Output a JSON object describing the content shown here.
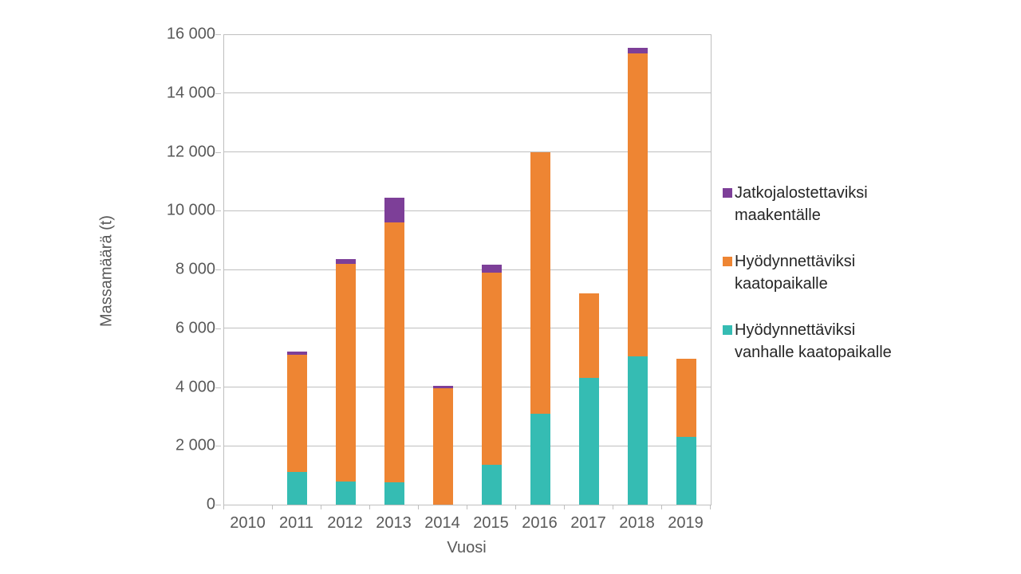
{
  "chart_data": {
    "type": "bar",
    "stacked": true,
    "title": "",
    "xlabel": "Vuosi",
    "ylabel": "Massamäärä (t)",
    "ylim": [
      0,
      16000
    ],
    "ytick_step": 2000,
    "yticks": [
      {
        "value": 0,
        "label": "0"
      },
      {
        "value": 2000,
        "label": "2 000"
      },
      {
        "value": 4000,
        "label": "4 000"
      },
      {
        "value": 6000,
        "label": "6 000"
      },
      {
        "value": 8000,
        "label": "8 000"
      },
      {
        "value": 10000,
        "label": "10 000"
      },
      {
        "value": 12000,
        "label": "12 000"
      },
      {
        "value": 14000,
        "label": "14 000"
      },
      {
        "value": 16000,
        "label": "16 000"
      }
    ],
    "categories": [
      "2010",
      "2011",
      "2012",
      "2013",
      "2014",
      "2015",
      "2016",
      "2017",
      "2018",
      "2019"
    ],
    "series": [
      {
        "name": "Hyödynnettäviksi vanhalle kaatopaikalle",
        "color": "#35BCB3",
        "values": [
          0,
          1100,
          800,
          750,
          0,
          1350,
          3100,
          4300,
          5050,
          2300
        ]
      },
      {
        "name": "Hyödynnettäviksi kaatopaikalle",
        "color": "#EE8533",
        "values": [
          0,
          4000,
          7400,
          8850,
          3950,
          6550,
          8900,
          2900,
          10300,
          2650
        ]
      },
      {
        "name": "Jatkojalostettaviksi maakentälle",
        "color": "#7D3F98",
        "values": [
          0,
          100,
          150,
          850,
          100,
          250,
          0,
          0,
          200,
          0
        ]
      }
    ],
    "legend_position": "right",
    "legend": [
      {
        "color": "#7D3F98",
        "lines": [
          "Jatkojalostettaviksi",
          "maakentälle"
        ]
      },
      {
        "color": "#EE8533",
        "lines": [
          "Hyödynnettäviksi",
          "kaatopaikalle"
        ]
      },
      {
        "color": "#35BCB3",
        "lines": [
          "Hyödynnettäviksi",
          "vanhalle kaatopaikalle"
        ]
      }
    ],
    "grid": "horizontal",
    "colors": {
      "gridline": "#BFBFBF",
      "axis_text": "#595959",
      "legend_text": "#262626",
      "background": "#FFFFFF"
    }
  }
}
